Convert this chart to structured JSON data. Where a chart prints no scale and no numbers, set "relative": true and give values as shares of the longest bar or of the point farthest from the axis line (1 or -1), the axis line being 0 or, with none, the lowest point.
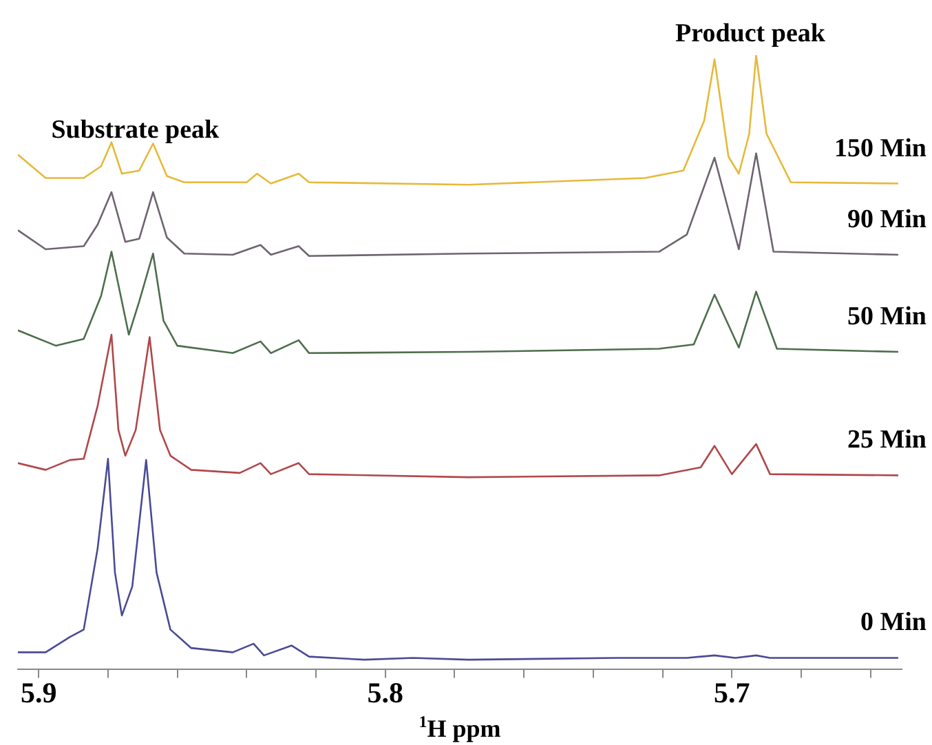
{
  "chart_data": {
    "type": "line",
    "relative": true,
    "xlabel": "$^{1}$H ppm",
    "xlim": [
      5.906,
      5.651
    ],
    "xticks": [
      5.9,
      {
        "value": 5.88,
        "label": null
      },
      {
        "value": 5.86,
        "label": null
      },
      {
        "value": 5.84,
        "label": null
      },
      {
        "value": 5.82,
        "label": null
      },
      5.8,
      {
        "value": 5.78,
        "label": null
      },
      {
        "value": 5.76,
        "label": null
      },
      {
        "value": 5.74,
        "label": null
      },
      {
        "value": 5.72,
        "label": null
      },
      5.7,
      {
        "value": 5.68,
        "label": null
      },
      {
        "value": 5.66,
        "label": null
      }
    ],
    "grid": false,
    "legend": false,
    "marker": "none",
    "line_style": "solid",
    "annotations": [
      "Substrate peak",
      "Product peak"
    ],
    "series": [
      {
        "name": "0 Min",
        "color": "#4a4a96",
        "x": [
          5.906,
          5.898,
          5.891,
          5.887,
          5.883,
          5.88,
          5.878,
          5.876,
          5.873,
          5.869,
          5.866,
          5.862,
          5.856,
          5.844,
          5.838,
          5.835,
          5.827,
          5.822,
          5.806,
          5.792,
          5.776,
          5.733,
          5.713,
          5.705,
          5.699,
          5.693,
          5.689,
          5.652
        ],
        "values": [
          0.028,
          0.028,
          0.053,
          0.065,
          0.197,
          0.343,
          0.158,
          0.088,
          0.135,
          0.341,
          0.158,
          0.065,
          0.035,
          0.028,
          0.042,
          0.023,
          0.039,
          0.021,
          0.016,
          0.019,
          0.016,
          0.019,
          0.019,
          0.023,
          0.019,
          0.023,
          0.019,
          0.019
        ]
      },
      {
        "name": "25 Min",
        "color": "#b0474a",
        "x": [
          5.906,
          5.898,
          5.891,
          5.887,
          5.883,
          5.879,
          5.877,
          5.875,
          5.872,
          5.868,
          5.865,
          5.862,
          5.856,
          5.842,
          5.836,
          5.833,
          5.825,
          5.822,
          5.776,
          5.721,
          5.709,
          5.705,
          5.7,
          5.693,
          5.689,
          5.652
        ],
        "values": [
          0.336,
          0.325,
          0.341,
          0.343,
          0.429,
          0.545,
          0.39,
          0.348,
          0.39,
          0.541,
          0.39,
          0.348,
          0.325,
          0.32,
          0.336,
          0.318,
          0.336,
          0.318,
          0.313,
          0.316,
          0.329,
          0.364,
          0.318,
          0.367,
          0.318,
          0.316
        ]
      },
      {
        "name": "50 Min",
        "color": "#4d6e4d",
        "x": [
          5.906,
          5.895,
          5.887,
          5.882,
          5.879,
          5.874,
          5.871,
          5.867,
          5.864,
          5.86,
          5.844,
          5.836,
          5.833,
          5.825,
          5.822,
          5.776,
          5.721,
          5.711,
          5.705,
          5.698,
          5.693,
          5.687,
          5.652
        ],
        "values": [
          0.552,
          0.527,
          0.538,
          0.608,
          0.68,
          0.545,
          0.599,
          0.677,
          0.568,
          0.527,
          0.515,
          0.534,
          0.515,
          0.536,
          0.515,
          0.517,
          0.522,
          0.529,
          0.61,
          0.524,
          0.615,
          0.522,
          0.517
        ]
      },
      {
        "name": "90 Min",
        "color": "#6e6470",
        "x": [
          5.906,
          5.898,
          5.887,
          5.883,
          5.879,
          5.875,
          5.871,
          5.867,
          5.863,
          5.858,
          5.844,
          5.836,
          5.833,
          5.825,
          5.822,
          5.776,
          5.721,
          5.713,
          5.705,
          5.698,
          5.693,
          5.688,
          5.652
        ],
        "values": [
          0.715,
          0.684,
          0.689,
          0.724,
          0.777,
          0.696,
          0.701,
          0.777,
          0.703,
          0.677,
          0.675,
          0.691,
          0.675,
          0.689,
          0.673,
          0.677,
          0.68,
          0.708,
          0.833,
          0.684,
          0.84,
          0.68,
          0.675
        ]
      },
      {
        "name": "150 Min",
        "color": "#e6b93a",
        "x": [
          5.906,
          5.898,
          5.887,
          5.882,
          5.879,
          5.876,
          5.871,
          5.867,
          5.863,
          5.858,
          5.84,
          5.837,
          5.833,
          5.825,
          5.822,
          5.776,
          5.725,
          5.714,
          5.708,
          5.705,
          5.701,
          5.698,
          5.695,
          5.693,
          5.69,
          5.683,
          5.652
        ],
        "values": [
          0.838,
          0.8,
          0.8,
          0.819,
          0.858,
          0.807,
          0.812,
          0.856,
          0.803,
          0.793,
          0.793,
          0.807,
          0.791,
          0.807,
          0.793,
          0.789,
          0.8,
          0.812,
          0.893,
          0.993,
          0.835,
          0.807,
          0.872,
          1,
          0.872,
          0.793,
          0.791
        ]
      }
    ]
  }
}
